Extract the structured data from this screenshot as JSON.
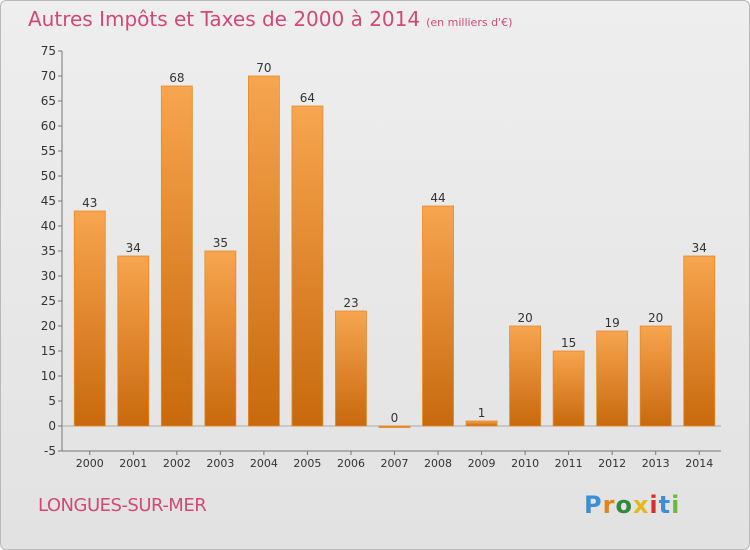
{
  "title": "Autres Impôts et Taxes de 2000 à 2014",
  "unit": "(en milliers d'€)",
  "commune": "LONGUES-SUR-MER",
  "logo": [
    "P",
    "r",
    "o",
    "x",
    "i",
    "t",
    "i"
  ],
  "colors": {
    "bar_light": "#f7a550",
    "bar_dark": "#c8690c",
    "accent": "#d14a77"
  },
  "chart_data": {
    "type": "bar",
    "title": "Autres Impôts et Taxes de 2000 à 2014",
    "subtitle": "(en milliers d'€)",
    "categories": [
      "2000",
      "2001",
      "2002",
      "2003",
      "2004",
      "2005",
      "2006",
      "2007",
      "2008",
      "2009",
      "2010",
      "2011",
      "2012",
      "2013",
      "2014"
    ],
    "values": [
      43,
      34,
      68,
      35,
      70,
      64,
      23,
      0,
      44,
      1,
      20,
      15,
      19,
      20,
      34
    ],
    "ylim": [
      -5,
      75
    ],
    "yticks": [
      -5,
      0,
      5,
      10,
      15,
      20,
      25,
      30,
      35,
      40,
      45,
      50,
      55,
      60,
      65,
      70,
      75
    ],
    "grid": false,
    "data_labels": true
  }
}
